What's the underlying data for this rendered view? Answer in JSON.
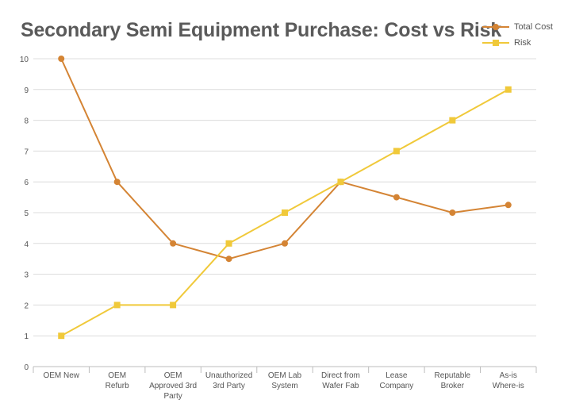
{
  "chart_data": {
    "type": "line",
    "title": "Secondary Semi Equipment Purchase: Cost vs Risk",
    "xlabel": "",
    "ylabel": "",
    "ylim": [
      0,
      10
    ],
    "yticks": [
      0,
      1,
      2,
      3,
      4,
      5,
      6,
      7,
      8,
      9,
      10
    ],
    "grid": true,
    "legend_position": "top-right",
    "categories": [
      [
        "OEM New"
      ],
      [
        "OEM",
        "Refurb"
      ],
      [
        "OEM",
        "Approved 3rd",
        "Party"
      ],
      [
        "Unauthorized",
        "3rd Party"
      ],
      [
        "OEM Lab",
        "System"
      ],
      [
        "Direct from",
        "Wafer Fab"
      ],
      [
        "Lease",
        "Company"
      ],
      [
        "Reputable",
        "Broker"
      ],
      [
        "As-is",
        "Where-is"
      ]
    ],
    "series": [
      {
        "name": "Total Cost",
        "color": "#d48434",
        "marker": "circle",
        "values": [
          10,
          6,
          4,
          3.5,
          4,
          6,
          5.5,
          5,
          5.25
        ]
      },
      {
        "name": "Risk",
        "color": "#f0c93a",
        "marker": "square",
        "values": [
          1,
          2,
          2,
          4,
          5,
          6,
          7,
          8,
          9
        ]
      }
    ]
  }
}
